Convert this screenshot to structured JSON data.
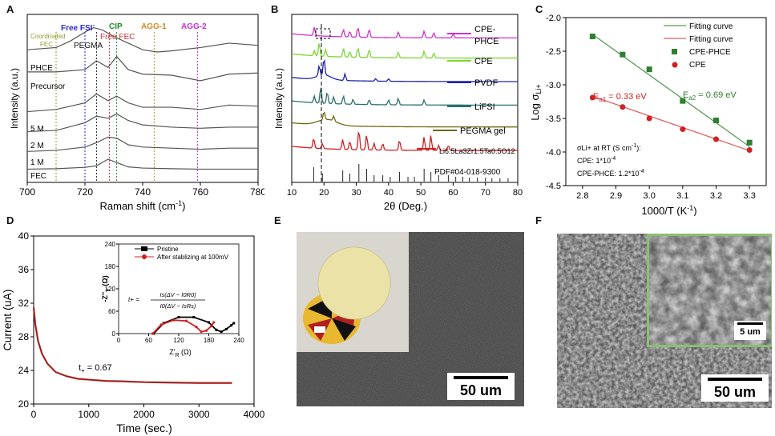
{
  "panels": {
    "A": {
      "label": "A",
      "xlabel": "Raman shift (cm",
      "xlabel_sup": "-1",
      "xlabel_end": ")",
      "ylabel": "Intensity (a.u.)",
      "xticks": [
        "700",
        "720",
        "740",
        "760",
        "780"
      ],
      "annotations": {
        "coord1": "Coordinated",
        "coord2": "FEC",
        "freefsi": "Free FSI",
        "freefsi_sup": "-",
        "pegma": "PEGMA",
        "cip": "CIP",
        "freefec": "Free FEC",
        "agg1": "AGG-1",
        "agg2": "AGG-2"
      },
      "curve_labels": [
        "PHCE",
        "Precursor",
        "5 M",
        "2 M",
        "1 M",
        "FEC"
      ],
      "colors": {
        "coord": "#9a9a2a",
        "freefsi": "#2a2ad0",
        "pegma": "#222222",
        "cip": "#1f8a2a",
        "freefec": "#d03030",
        "agg1": "#d08a20",
        "agg2": "#c030d0"
      }
    },
    "B": {
      "label": "B",
      "xlabel": "2θ (Deg.)",
      "ylabel": "Intensity (a.u.)",
      "xticks": [
        "10",
        "20",
        "30",
        "40",
        "50",
        "60",
        "70",
        "80"
      ],
      "legend": [
        "CPE-",
        "PHCE",
        "CPE",
        "PVDF",
        "LiFSI",
        "PEGMA gel"
      ],
      "llzto": "Li6.5La3Zr1.5Ta0.5O12",
      "pdf": "PDF#04-018-9300",
      "colors": {
        "cpephce": "#d030d0",
        "cpe": "#7ad830",
        "pvdf": "#2020b0",
        "lifsi": "#2a7070",
        "pegma": "#6a6a10",
        "llzto": "#d02020",
        "pdf": "#222222"
      }
    },
    "C": {
      "label": "C",
      "xlabel": "1000/T (K",
      "xlabel_sup": "-1",
      "xlabel_end": ")",
      "ylabel": "Log σ",
      "ylabel_sub": "Li+",
      "xticks": [
        "2.8",
        "2.9",
        "3.0",
        "3.1",
        "3.2",
        "3.3"
      ],
      "yticks": [
        "-2.0",
        "-2.5",
        "-3.0",
        "-3.5",
        "-4.0",
        "-4.5"
      ],
      "legend": [
        "Fitting curve",
        "Fitting curve",
        "CPE-PHCE",
        "CPE"
      ],
      "ea1": "E",
      "ea1_sub": "a1",
      "ea1_val": " = 0.33 eV",
      "ea2": "E",
      "ea2_sub": "a2",
      "ea2_val": " = 0.69 eV",
      "rt_title": "σLi+ at RT (S cm",
      "rt_title_sup": "-1",
      "rt_title_end": "):",
      "rt_cpe": "CPE: 1*10",
      "rt_cpe_sup": "-4",
      "rt_phce": "CPE-PHCE: 1.2*10",
      "rt_phce_sup": "-4",
      "colors": {
        "phce": "#2f7f2f",
        "cpe": "#d02020",
        "phce_line": "#5a9a5a",
        "cpe_line": "#e06060"
      }
    },
    "D": {
      "label": "D",
      "xlabel": "Time (sec.)",
      "ylabel": "Current (uA)",
      "xticks": [
        "0",
        "1000",
        "2000",
        "3000",
        "4000"
      ],
      "yticks": [
        "40",
        "36",
        "32",
        "28",
        "24",
        "20"
      ],
      "tplus": "t",
      "tplus_sub": "+",
      "tplus_val": " = 0.67",
      "inset": {
        "legend": [
          "Pristine",
          "After stablizing at 100mV"
        ],
        "xlabel": "Z'",
        "xlabel_sub": "R",
        "xlabel_end": " (Ω)",
        "ylabel": "-Z''",
        "ylabel_sub": "Y",
        "ylabel_end": " (Ω)",
        "xticks": [
          "0",
          "60",
          "120",
          "180",
          "240"
        ],
        "yticks": [
          "240",
          "180",
          "120",
          "60",
          "0"
        ],
        "formula_lhs": "t+ =",
        "formula_num": "Is(ΔV − I0R0)",
        "formula_den": "I0(ΔV − IsRs)"
      },
      "colors": {
        "pristine": "#000000",
        "after": "#d02020"
      }
    },
    "E": {
      "label": "E",
      "scale": "50 um"
    },
    "F": {
      "label": "F",
      "scale": "50 um",
      "inset_scale": "5 um",
      "inset_border": "#8ac070"
    }
  },
  "chart_data": [
    {
      "type": "line",
      "panel": "A",
      "xlabel": "Raman shift (cm-1)",
      "ylabel": "Intensity (a.u.)",
      "xlim": [
        700,
        780
      ],
      "series": [
        {
          "name": "PHCE",
          "x": [
            700,
            710,
            715,
            720,
            723,
            726,
            730,
            735,
            740,
            745,
            750,
            760,
            770,
            780
          ],
          "y": [
            6.0,
            6.1,
            6.4,
            6.8,
            7.0,
            6.9,
            6.6,
            6.3,
            6.0,
            5.9,
            5.95,
            6.1,
            6.3,
            6.2
          ]
        },
        {
          "name": "Precursor",
          "x": [
            700,
            710,
            720,
            724,
            728,
            731,
            735,
            740,
            750,
            760,
            770,
            780
          ],
          "y": [
            5.0,
            5.0,
            5.1,
            5.5,
            5.2,
            5.7,
            5.1,
            4.9,
            4.85,
            4.6,
            4.9,
            4.95
          ]
        },
        {
          "name": "5 M",
          "x": [
            700,
            710,
            720,
            724,
            728,
            731,
            735,
            740,
            750,
            760,
            770,
            780
          ],
          "y": [
            3.2,
            3.3,
            3.6,
            4.0,
            3.7,
            3.9,
            3.6,
            3.4,
            3.4,
            3.3,
            3.5,
            3.45
          ]
        },
        {
          "name": "2 M",
          "x": [
            700,
            710,
            720,
            724,
            728,
            731,
            735,
            740,
            750,
            760,
            770,
            780
          ],
          "y": [
            2.3,
            2.35,
            2.7,
            3.0,
            2.9,
            3.1,
            2.8,
            2.6,
            2.5,
            2.45,
            2.5,
            2.5
          ]
        },
        {
          "name": "1 M",
          "x": [
            700,
            710,
            720,
            724,
            728,
            731,
            735,
            740,
            750,
            760,
            770,
            780
          ],
          "y": [
            1.4,
            1.45,
            1.6,
            1.8,
            2.05,
            2.0,
            1.7,
            1.6,
            1.55,
            1.5,
            1.55,
            1.55
          ]
        },
        {
          "name": "FEC",
          "x": [
            700,
            710,
            720,
            724,
            728,
            731,
            735,
            740,
            750,
            760,
            770,
            780
          ],
          "y": [
            0.6,
            0.62,
            0.68,
            0.75,
            1.05,
            0.9,
            0.7,
            0.65,
            0.62,
            0.6,
            0.6,
            0.6
          ]
        }
      ],
      "markers_x": [
        710,
        720,
        724,
        728.5,
        731,
        744,
        759
      ]
    },
    {
      "type": "line",
      "panel": "B",
      "xlabel": "2θ (Deg.)",
      "ylabel": "Intensity (a.u.)",
      "xlim": [
        10,
        80
      ],
      "series": [
        {
          "name": "CPE-PHCE",
          "offset": 8.6,
          "peaks": [
            [
              17,
              0.5
            ],
            [
              26,
              0.45
            ],
            [
              28,
              0.35
            ],
            [
              30.5,
              0.6
            ],
            [
              34,
              0.5
            ],
            [
              43,
              0.35
            ],
            [
              51,
              0.4
            ],
            [
              54,
              0.3
            ],
            [
              60,
              0.25
            ]
          ]
        },
        {
          "name": "CPE",
          "offset": 7.4,
          "peaks": [
            [
              17,
              0.3
            ],
            [
              18.5,
              0.8
            ],
            [
              20.5,
              0.4
            ],
            [
              26,
              0.5
            ],
            [
              28,
              0.35
            ],
            [
              30.5,
              0.6
            ],
            [
              34,
              0.5
            ],
            [
              43,
              0.35
            ],
            [
              51,
              0.4
            ],
            [
              54,
              0.3
            ]
          ]
        },
        {
          "name": "PVDF",
          "offset": 6.0,
          "peaks": [
            [
              18.5,
              0.6
            ],
            [
              20,
              1.0
            ],
            [
              26.5,
              0.4
            ],
            [
              36,
              0.15
            ],
            [
              40,
              0.15
            ]
          ]
        },
        {
          "name": "LiFSI",
          "offset": 4.6,
          "peaks": [
            [
              17,
              0.4
            ],
            [
              19,
              1.0
            ],
            [
              21,
              0.7
            ],
            [
              23,
              0.4
            ],
            [
              26,
              0.5
            ],
            [
              29,
              0.3
            ],
            [
              34,
              0.3
            ],
            [
              40,
              0.3
            ],
            [
              43,
              0.4
            ],
            [
              51,
              0.3
            ]
          ]
        },
        {
          "name": "PEGMA gel",
          "offset": 3.3,
          "peaks": [
            [
              20,
              0.5
            ],
            [
              23,
              0.3
            ]
          ]
        },
        {
          "name": "Li6.5La3Zr1.5Ta0.5O12",
          "offset": 1.9,
          "peaks": [
            [
              16.8,
              0.6
            ],
            [
              19.5,
              0.3
            ],
            [
              25.8,
              0.6
            ],
            [
              28,
              0.5
            ],
            [
              30.8,
              1.2
            ],
            [
              33.2,
              0.9
            ],
            [
              35.5,
              0.4
            ],
            [
              38.2,
              0.4
            ],
            [
              43.4,
              0.6
            ],
            [
              51,
              0.8
            ],
            [
              53.1,
              0.9
            ],
            [
              55.5,
              0.3
            ],
            [
              58.5,
              0.3
            ]
          ]
        }
      ],
      "pdf_lines": [
        16.8,
        19.5,
        25.8,
        28,
        30.8,
        33.2,
        35.5,
        38.2,
        40.5,
        43.4,
        46,
        48,
        51,
        53.1,
        55.5,
        58.5,
        60.8,
        63,
        65,
        67.5,
        70,
        72,
        74.5,
        77
      ]
    },
    {
      "type": "scatter",
      "panel": "C",
      "xlabel": "1000/T (K-1)",
      "ylabel": "Log σLi+",
      "xlim": [
        2.8,
        3.3
      ],
      "ylim": [
        -4.5,
        -2.0
      ],
      "series": [
        {
          "name": "CPE-PHCE",
          "x": [
            2.83,
            2.92,
            3.0,
            3.1,
            3.2,
            3.3
          ],
          "y": [
            -2.28,
            -2.55,
            -2.77,
            -3.24,
            -3.53,
            -3.86
          ],
          "fit": [
            [
              2.83,
              -2.25
            ],
            [
              3.3,
              -3.92
            ]
          ]
        },
        {
          "name": "CPE",
          "x": [
            2.83,
            2.92,
            3.0,
            3.1,
            3.2,
            3.3
          ],
          "y": [
            -3.19,
            -3.33,
            -3.5,
            -3.66,
            -3.81,
            -3.97
          ],
          "fit": [
            [
              2.83,
              -3.17
            ],
            [
              3.3,
              -3.98
            ]
          ]
        }
      ]
    },
    {
      "type": "line",
      "panel": "D",
      "xlabel": "Time (sec.)",
      "ylabel": "Current (uA)",
      "xlim": [
        0,
        4000
      ],
      "ylim": [
        20,
        40
      ],
      "series": [
        {
          "name": "Current",
          "x": [
            0,
            30,
            80,
            150,
            250,
            400,
            600,
            800,
            1000,
            1300,
            1600,
            2000,
            2500,
            3000,
            3600
          ],
          "y": [
            31.5,
            29.5,
            27.5,
            26.0,
            24.8,
            23.8,
            23.3,
            23.0,
            22.9,
            22.75,
            22.7,
            22.6,
            22.55,
            22.5,
            22.5
          ]
        }
      ]
    },
    {
      "type": "scatter",
      "panel": "D-inset",
      "xlabel": "Z'R (Ω)",
      "ylabel": "-Z''Y (Ω)",
      "xlim": [
        0,
        240
      ],
      "ylim": [
        0,
        240
      ],
      "series": [
        {
          "name": "Pristine",
          "arc": [
            [
              70,
              0
            ],
            [
              90,
              28
            ],
            [
              120,
              44
            ],
            [
              150,
              44
            ],
            [
              180,
              30
            ],
            [
              195,
              10
            ],
            [
              205,
              5
            ],
            [
              215,
              12
            ],
            [
              225,
              22
            ],
            [
              230,
              28
            ]
          ]
        },
        {
          "name": "After stablizing at 100mV",
          "arc": [
            [
              68,
              0
            ],
            [
              85,
              24
            ],
            [
              110,
              36
            ],
            [
              135,
              34
            ],
            [
              155,
              18
            ],
            [
              165,
              5
            ],
            [
              175,
              8
            ],
            [
              185,
              20
            ],
            [
              190,
              30
            ]
          ]
        }
      ]
    }
  ]
}
